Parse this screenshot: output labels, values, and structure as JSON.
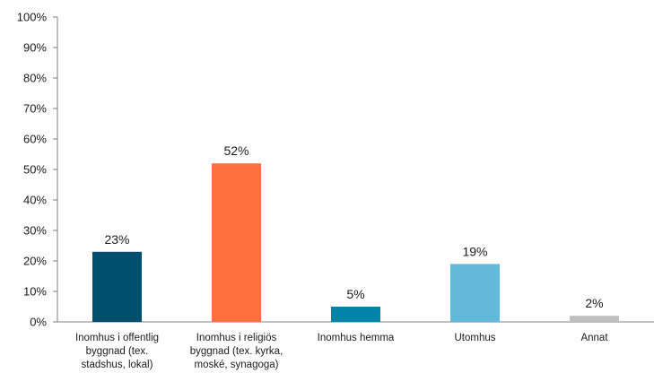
{
  "chart_data": {
    "type": "bar",
    "categories": [
      [
        "Inomhus i offentlig",
        "byggnad (tex.",
        "stadshus, lokal)"
      ],
      [
        "Inomhus i religiös",
        "byggnad (tex. kyrka,",
        "moské, synagoga)"
      ],
      [
        "Inomhus hemma"
      ],
      [
        "Utomhus"
      ],
      [
        "Annat"
      ]
    ],
    "values": [
      23,
      52,
      5,
      19,
      2
    ],
    "data_labels": [
      "23%",
      "52%",
      "5%",
      "19%",
      "2%"
    ],
    "colors": [
      "#004F6E",
      "#FF6F3F",
      "#0083A9",
      "#63B9DA",
      "#BFBFBF"
    ],
    "ylim": [
      0,
      100
    ],
    "yticks": [
      0,
      10,
      20,
      30,
      40,
      50,
      60,
      70,
      80,
      90,
      100
    ],
    "ytick_labels": [
      "0%",
      "10%",
      "20%",
      "30%",
      "40%",
      "50%",
      "60%",
      "70%",
      "80%",
      "90%",
      "100%"
    ],
    "grid": false,
    "legend": "none"
  }
}
